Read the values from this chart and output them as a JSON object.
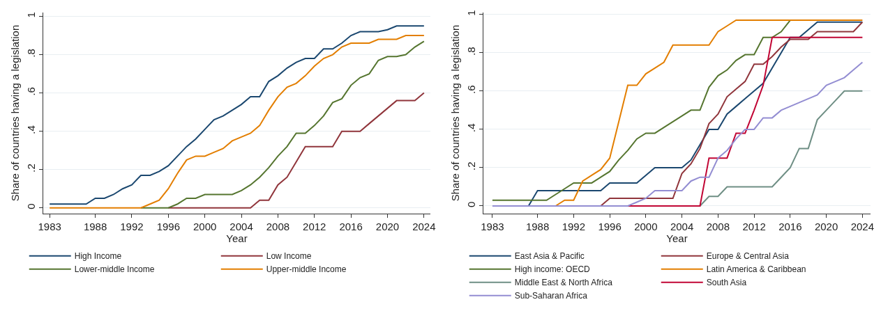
{
  "chart_data": [
    {
      "type": "line",
      "xlabel": "Year",
      "ylabel": "Share of countries having a legislation",
      "grid": "y",
      "legend": "bottom",
      "line_style": "solid",
      "marker": "none",
      "x": [
        1983,
        1984,
        1985,
        1986,
        1987,
        1988,
        1989,
        1990,
        1991,
        1992,
        1993,
        1994,
        1995,
        1996,
        1997,
        1998,
        1999,
        2000,
        2001,
        2002,
        2003,
        2004,
        2005,
        2006,
        2007,
        2008,
        2009,
        2010,
        2011,
        2012,
        2013,
        2014,
        2015,
        2016,
        2017,
        2018,
        2019,
        2020,
        2021,
        2022,
        2023,
        2024
      ],
      "xlim": [
        1982.3,
        2024.7
      ],
      "xticks": [
        1983,
        1988,
        1992,
        1996,
        2000,
        2004,
        2008,
        2012,
        2016,
        2020,
        2024
      ],
      "ylim": [
        -0.03,
        1.02
      ],
      "yticks": [
        {
          "value": 0,
          "label": "0"
        },
        {
          "value": 0.2,
          "label": ".2"
        },
        {
          "value": 0.4,
          "label": ".4"
        },
        {
          "value": 0.6,
          "label": ".6"
        },
        {
          "value": 0.8,
          "label": ".8"
        },
        {
          "value": 1,
          "label": "1"
        }
      ],
      "series": [
        {
          "name": "High Income",
          "color": "#1a476f",
          "values": [
            0.02,
            0.02,
            0.02,
            0.02,
            0.02,
            0.05,
            0.05,
            0.07,
            0.1,
            0.12,
            0.17,
            0.17,
            0.19,
            0.22,
            0.27,
            0.32,
            0.36,
            0.41,
            0.46,
            0.48,
            0.51,
            0.54,
            0.58,
            0.58,
            0.66,
            0.69,
            0.73,
            0.76,
            0.78,
            0.78,
            0.83,
            0.83,
            0.86,
            0.9,
            0.92,
            0.92,
            0.92,
            0.93,
            0.95,
            0.95,
            0.95,
            0.95
          ]
        },
        {
          "name": "Low Income",
          "color": "#90353b",
          "values": [
            null,
            null,
            null,
            null,
            null,
            null,
            null,
            null,
            null,
            null,
            null,
            null,
            null,
            0,
            0,
            0,
            0,
            0,
            0,
            0,
            0,
            0,
            0,
            0.04,
            0.04,
            0.12,
            0.16,
            0.24,
            0.32,
            0.32,
            0.32,
            0.32,
            0.4,
            0.4,
            0.4,
            0.44,
            0.48,
            0.52,
            0.56,
            0.56,
            0.56,
            0.6
          ]
        },
        {
          "name": "Lower-middle Income",
          "color": "#55752f",
          "values": [
            null,
            null,
            null,
            null,
            null,
            null,
            null,
            null,
            null,
            null,
            0,
            0,
            0,
            0,
            0.02,
            0.05,
            0.05,
            0.07,
            0.07,
            0.07,
            0.07,
            0.09,
            0.12,
            0.16,
            0.21,
            0.27,
            0.32,
            0.39,
            0.39,
            0.43,
            0.48,
            0.55,
            0.57,
            0.64,
            0.68,
            0.7,
            0.77,
            0.79,
            0.79,
            0.8,
            0.84,
            0.87
          ]
        },
        {
          "name": "Upper-middle Income",
          "color": "#e37e00",
          "values": [
            0,
            0,
            0,
            0,
            0,
            0,
            0,
            0,
            0,
            0,
            0,
            0.02,
            0.04,
            0.1,
            0.18,
            0.25,
            0.27,
            0.27,
            0.29,
            0.31,
            0.35,
            0.37,
            0.39,
            0.43,
            0.51,
            0.58,
            0.63,
            0.65,
            0.69,
            0.74,
            0.78,
            0.8,
            0.84,
            0.86,
            0.86,
            0.86,
            0.88,
            0.88,
            0.88,
            0.9,
            0.9,
            0.9
          ]
        }
      ]
    },
    {
      "type": "line",
      "xlabel": "Year",
      "ylabel": "Share of countries having a legislation",
      "grid": "y",
      "legend": "bottom",
      "line_style": "solid",
      "marker": "none",
      "x": [
        1983,
        1984,
        1985,
        1986,
        1987,
        1988,
        1989,
        1990,
        1991,
        1992,
        1993,
        1994,
        1995,
        1996,
        1997,
        1998,
        1999,
        2000,
        2001,
        2002,
        2003,
        2004,
        2005,
        2006,
        2007,
        2008,
        2009,
        2010,
        2011,
        2012,
        2013,
        2014,
        2015,
        2016,
        2017,
        2018,
        2019,
        2020,
        2021,
        2022,
        2023,
        2024
      ],
      "xlim": [
        1982,
        2024.9
      ],
      "xticks": [
        1983,
        1988,
        1992,
        1996,
        2000,
        2004,
        2008,
        2012,
        2016,
        2020,
        2024
      ],
      "ylim": [
        -0.04,
        1.01
      ],
      "yticks": [
        {
          "value": 0,
          "label": "0"
        },
        {
          "value": 0.2,
          "label": ".2"
        },
        {
          "value": 0.4,
          "label": ".4"
        },
        {
          "value": 0.6,
          "label": ".6"
        },
        {
          "value": 0.8,
          "label": ".8"
        },
        {
          "value": 1,
          "label": "1"
        }
      ],
      "series": [
        {
          "name": "East Asia & Pacific",
          "color": "#1a476f",
          "values": [
            null,
            null,
            null,
            null,
            0,
            0.08,
            0.08,
            0.08,
            0.08,
            0.08,
            0.08,
            0.08,
            0.08,
            0.12,
            0.12,
            0.12,
            0.12,
            0.16,
            0.2,
            0.2,
            0.2,
            0.2,
            0.24,
            0.32,
            0.4,
            0.4,
            0.48,
            0.52,
            0.56,
            0.6,
            0.64,
            0.72,
            0.8,
            0.88,
            0.88,
            0.92,
            0.96,
            0.96,
            0.96,
            0.96,
            0.96,
            0.96
          ]
        },
        {
          "name": "Europe & Central Asia",
          "color": "#90353b",
          "values": [
            null,
            null,
            null,
            null,
            null,
            null,
            null,
            null,
            null,
            null,
            null,
            null,
            0,
            0.04,
            0.04,
            0.04,
            0.04,
            0.04,
            0.04,
            0.04,
            0.04,
            0.17,
            0.22,
            0.3,
            0.43,
            0.48,
            0.57,
            0.61,
            0.65,
            0.74,
            0.74,
            0.78,
            0.83,
            0.87,
            0.87,
            0.87,
            0.91,
            0.91,
            0.91,
            0.91,
            0.91,
            0.96
          ]
        },
        {
          "name": "High income: OECD",
          "color": "#55752f",
          "values": [
            0.03,
            0.03,
            0.03,
            0.03,
            0.03,
            0.03,
            0.03,
            0.06,
            0.09,
            0.12,
            0.12,
            0.12,
            0.15,
            0.18,
            0.24,
            0.29,
            0.35,
            0.38,
            0.38,
            0.41,
            0.44,
            0.47,
            0.5,
            0.5,
            0.62,
            0.68,
            0.71,
            0.76,
            0.79,
            0.79,
            0.88,
            0.88,
            0.91,
            0.97,
            null,
            null,
            null,
            null,
            null,
            null,
            null,
            null
          ]
        },
        {
          "name": "Latin America & Caribbean",
          "color": "#e37e00",
          "values": [
            null,
            null,
            null,
            null,
            null,
            null,
            null,
            0,
            0.03,
            0.03,
            0.13,
            0.16,
            0.19,
            0.25,
            0.44,
            0.63,
            0.63,
            0.69,
            0.72,
            0.75,
            0.84,
            0.84,
            0.84,
            0.84,
            0.84,
            0.91,
            0.94,
            0.97,
            0.97,
            0.97,
            0.97,
            0.97,
            0.97,
            0.97,
            0.97,
            0.97,
            0.97,
            0.97,
            0.97,
            0.97,
            0.97,
            0.97
          ]
        },
        {
          "name": "Middle East & North Africa",
          "color": "#6e8e84",
          "values": [
            null,
            null,
            null,
            null,
            null,
            null,
            null,
            null,
            null,
            null,
            null,
            null,
            null,
            null,
            null,
            null,
            null,
            null,
            null,
            null,
            null,
            null,
            null,
            0,
            0.05,
            0.05,
            0.1,
            0.1,
            0.1,
            0.1,
            0.1,
            0.1,
            0.15,
            0.2,
            0.3,
            0.3,
            0.45,
            0.5,
            0.55,
            0.6,
            0.6,
            0.6
          ]
        },
        {
          "name": "South Asia",
          "color": "#c10534",
          "values": [
            null,
            null,
            null,
            null,
            null,
            null,
            null,
            null,
            null,
            null,
            null,
            null,
            null,
            null,
            null,
            0,
            0,
            0,
            0,
            0,
            0,
            0,
            0,
            0,
            0.25,
            0.25,
            0.25,
            0.38,
            0.38,
            0.5,
            0.63,
            0.88,
            0.88,
            0.88,
            0.88,
            0.88,
            0.88,
            0.88,
            0.88,
            0.88,
            0.88,
            0.88
          ]
        },
        {
          "name": "Sub-Saharan Africa",
          "color": "#938dd2",
          "values": [
            0,
            0,
            0,
            0,
            0,
            0,
            0,
            0,
            0,
            0,
            0,
            0,
            0,
            0,
            0,
            0,
            0.02,
            0.04,
            0.08,
            0.08,
            0.08,
            0.08,
            0.13,
            0.15,
            0.15,
            0.25,
            0.29,
            0.35,
            0.4,
            0.4,
            0.46,
            0.46,
            0.5,
            0.52,
            0.54,
            0.56,
            0.58,
            0.63,
            0.65,
            0.67,
            0.71,
            0.75
          ]
        }
      ]
    }
  ]
}
